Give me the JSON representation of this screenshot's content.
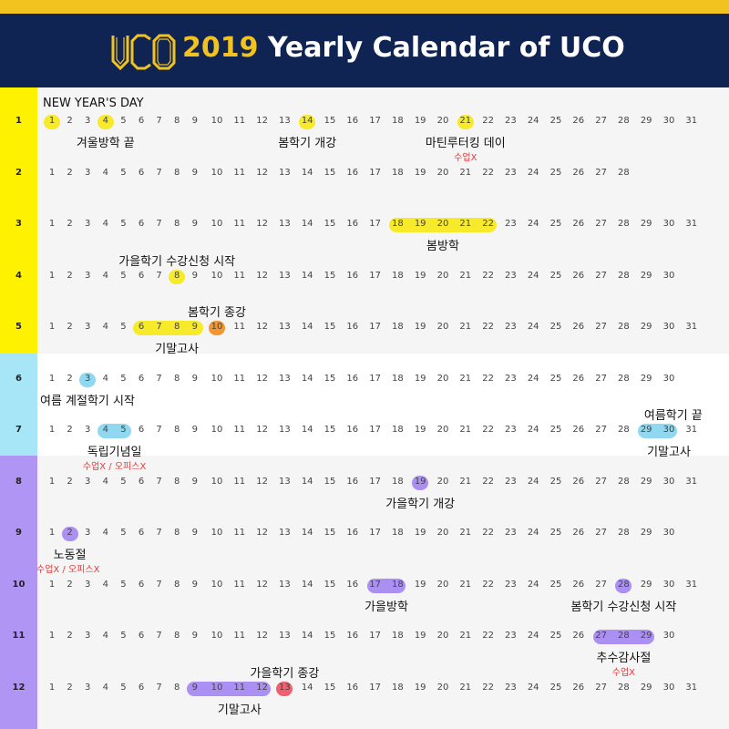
{
  "header": {
    "logo_text": "UCO",
    "title_year": "2019",
    "title_rest": "Yearly Calendar of UCO"
  },
  "colors": {
    "top_stripe": "#f2c21f",
    "header_bg": "#0f2453",
    "spring_side": "#fff200",
    "summer_side": "#a7e6f7",
    "fall_side": "#b095f5",
    "yellow_hl": "#f6ea2a",
    "orange_hl": "#f3962f",
    "blue_hl": "#8fd8f0",
    "purple_hl": "#ab8ff3",
    "red_hl": "#ef6170",
    "red_text": "#e23b3b"
  },
  "months": [
    {
      "label": "1",
      "days": 31
    },
    {
      "label": "2",
      "days": 28
    },
    {
      "label": "3",
      "days": 31
    },
    {
      "label": "4",
      "days": 30
    },
    {
      "label": "5",
      "days": 31
    },
    {
      "label": "6",
      "days": 30
    },
    {
      "label": "7",
      "days": 31
    },
    {
      "label": "8",
      "days": 31
    },
    {
      "label": "9",
      "days": 30
    },
    {
      "label": "10",
      "days": 31
    },
    {
      "label": "11",
      "days": 30
    },
    {
      "label": "12",
      "days": 31
    }
  ],
  "highlights": [
    {
      "month": 1,
      "from": 1,
      "to": 1,
      "color": "yellow_hl"
    },
    {
      "month": 1,
      "from": 4,
      "to": 4,
      "color": "yellow_hl"
    },
    {
      "month": 1,
      "from": 14,
      "to": 14,
      "color": "yellow_hl"
    },
    {
      "month": 1,
      "from": 21,
      "to": 21,
      "color": "yellow_hl"
    },
    {
      "month": 3,
      "from": 18,
      "to": 22,
      "color": "yellow_hl"
    },
    {
      "month": 4,
      "from": 8,
      "to": 8,
      "color": "yellow_hl"
    },
    {
      "month": 5,
      "from": 6,
      "to": 9,
      "color": "yellow_hl"
    },
    {
      "month": 5,
      "from": 10,
      "to": 10,
      "color": "orange_hl"
    },
    {
      "month": 6,
      "from": 3,
      "to": 3,
      "color": "blue_hl"
    },
    {
      "month": 7,
      "from": 4,
      "to": 5,
      "color": "blue_hl"
    },
    {
      "month": 7,
      "from": 29,
      "to": 30,
      "color": "blue_hl"
    },
    {
      "month": 8,
      "from": 19,
      "to": 19,
      "color": "purple_hl"
    },
    {
      "month": 9,
      "from": 2,
      "to": 2,
      "color": "purple_hl"
    },
    {
      "month": 10,
      "from": 17,
      "to": 18,
      "color": "purple_hl"
    },
    {
      "month": 10,
      "from": 28,
      "to": 28,
      "color": "purple_hl"
    },
    {
      "month": 11,
      "from": 27,
      "to": 29,
      "color": "purple_hl"
    },
    {
      "month": 12,
      "from": 9,
      "to": 12,
      "color": "purple_hl"
    },
    {
      "month": 12,
      "from": 13,
      "to": 13,
      "color": "red_hl"
    }
  ],
  "events": [
    {
      "month": 1,
      "anchor_day": 1,
      "pos": "above",
      "align": "left",
      "text": "NEW YEAR'S DAY"
    },
    {
      "month": 1,
      "anchor_day": 4,
      "pos": "below",
      "align": "center",
      "text": "겨울방학 끝"
    },
    {
      "month": 1,
      "anchor_day": 14,
      "pos": "below",
      "align": "center",
      "text": "봄학기 개강"
    },
    {
      "month": 1,
      "anchor_day": 21,
      "pos": "below",
      "align": "center",
      "text": "마틴루터킹 데이"
    },
    {
      "month": 1,
      "anchor_day": 21,
      "pos": "below2",
      "align": "center",
      "text": "수업X",
      "sub": true
    },
    {
      "month": 3,
      "anchor_day": 20,
      "pos": "below",
      "align": "center",
      "text": "봄방학"
    },
    {
      "month": 4,
      "anchor_day": 8,
      "pos": "above",
      "align": "center",
      "text": "가을학기 수강신청 시작"
    },
    {
      "month": 5,
      "anchor_day": 10,
      "pos": "above",
      "align": "center",
      "text": "봄학기 종강"
    },
    {
      "month": 5,
      "anchor_day": 8,
      "pos": "below",
      "align": "center",
      "text": "기말고사"
    },
    {
      "month": 6,
      "anchor_day": 1,
      "pos": "below",
      "align": "left",
      "text": "여름 계절학기 시작"
    },
    {
      "month": 7,
      "anchor_day": 4.5,
      "pos": "below",
      "align": "center",
      "text": "독립기념일"
    },
    {
      "month": 7,
      "anchor_day": 4.5,
      "pos": "below2",
      "align": "center",
      "text": "수업X / 오피스X",
      "sub": true
    },
    {
      "month": 7,
      "anchor_day": 31,
      "pos": "above",
      "align": "right",
      "text": "여름학기 끝"
    },
    {
      "month": 7,
      "anchor_day": 30,
      "pos": "below",
      "align": "center",
      "text": "기말고사"
    },
    {
      "month": 8,
      "anchor_day": 19,
      "pos": "below",
      "align": "center",
      "text": "가을학기 개강"
    },
    {
      "month": 9,
      "anchor_day": 2,
      "pos": "below",
      "align": "center",
      "text": "노동절"
    },
    {
      "month": 9,
      "anchor_day": 2,
      "pos": "below2",
      "align": "center",
      "text": "수업X / 오피스X",
      "sub": true
    },
    {
      "month": 10,
      "anchor_day": 17.5,
      "pos": "below",
      "align": "center",
      "text": "가을방학"
    },
    {
      "month": 10,
      "anchor_day": 28,
      "pos": "below",
      "align": "center",
      "text": "봄학기 수강신청 시작"
    },
    {
      "month": 11,
      "anchor_day": 28,
      "pos": "below",
      "align": "center",
      "text": "추수감사절"
    },
    {
      "month": 11,
      "anchor_day": 28,
      "pos": "below2",
      "align": "center",
      "text": "수업X",
      "sub": true
    },
    {
      "month": 12,
      "anchor_day": 13,
      "pos": "above",
      "align": "center",
      "text": "가을학기 종강"
    },
    {
      "month": 12,
      "anchor_day": 11,
      "pos": "below",
      "align": "center",
      "text": "기말고사"
    }
  ]
}
